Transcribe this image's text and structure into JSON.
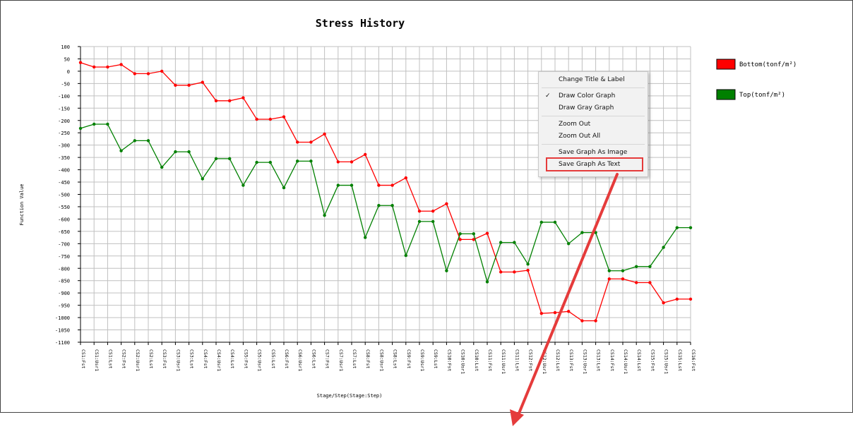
{
  "chart_data": {
    "type": "line",
    "title": "Stress History",
    "xlabel": "Stage/Step(Stage:Step)",
    "ylabel": "Function Value",
    "ylim": [
      -1100,
      100
    ],
    "ytick_step": 50,
    "grid": true,
    "legend_placement": "right",
    "categories": [
      "CS1:Fst",
      "CS1:Usr1",
      "CS1:Lst",
      "CS2:Fst",
      "CS2:Usr1",
      "CS2:Lst",
      "CS3:Fst",
      "CS3:Usr1",
      "CS3:Lst",
      "CS4:Fst",
      "CS4:Usr1",
      "CS4:Lst",
      "CS5:Fst",
      "CS5:Usr1",
      "CS5:Lst",
      "CS6:Fst",
      "CS6:Usr1",
      "CS6:Lst",
      "CS7:Fst",
      "CS7:Usr1",
      "CS7:Lst",
      "CS8:Fst",
      "CS8:Usr1",
      "CS8:Lst",
      "CS9:Fst",
      "CS9:Usr1",
      "CS9:Lst",
      "CS10:Fst",
      "CS10:Usr1",
      "CS10:Lst",
      "CS11:Fst",
      "CS11:Usr1",
      "CS11:Lst",
      "CS12:Fst",
      "CS12:Usr1",
      "CS12:Lst",
      "CS13:Fst",
      "CS13:Usr1",
      "CS13:Lst",
      "CS14:Fst",
      "CS14:Usr1",
      "CS14:Lst",
      "CS15:Fst",
      "CS15:Usr1",
      "CS15:Lst",
      "CS16:Fst"
    ],
    "series": [
      {
        "name": "Bottom(tonf/m²)",
        "color": "#ff0000",
        "values": [
          35,
          17,
          17,
          27,
          -10,
          -10,
          0,
          -57,
          -57,
          -45,
          -120,
          -120,
          -108,
          -195,
          -195,
          -185,
          -288,
          -288,
          -255,
          -368,
          -368,
          -338,
          -463,
          -463,
          -433,
          -568,
          -568,
          -538,
          -683,
          -683,
          -658,
          -815,
          -815,
          -808,
          -983,
          -980,
          -975,
          -1013,
          -1013,
          -843,
          -843,
          -858,
          -858,
          -940,
          -925,
          -925
        ]
      },
      {
        "name": "Top(tonf/m²)",
        "color": "#008000",
        "values": [
          -232,
          -215,
          -215,
          -323,
          -282,
          -282,
          -390,
          -327,
          -327,
          -437,
          -355,
          -355,
          -463,
          -370,
          -370,
          -473,
          -365,
          -365,
          -585,
          -463,
          -463,
          -675,
          -545,
          -545,
          -748,
          -610,
          -610,
          -810,
          -660,
          -660,
          -855,
          -695,
          -695,
          -783,
          -613,
          -613,
          -700,
          -655,
          -655,
          -810,
          -810,
          -793,
          -793,
          -715,
          -635,
          -635
        ]
      }
    ]
  },
  "yticks": [
    "100",
    "50",
    "0",
    "-50",
    "-100",
    "-150",
    "-200",
    "-250",
    "-300",
    "-350",
    "-400",
    "-450",
    "-500",
    "-550",
    "-600",
    "-650",
    "-700",
    "-750",
    "-800",
    "-850",
    "-900",
    "-950",
    "-1000",
    "-1050",
    "-1100"
  ],
  "context_menu": {
    "items": [
      {
        "label": "Change Title & Label",
        "checked": false
      },
      {
        "label": "Draw Color Graph",
        "checked": true
      },
      {
        "label": "Draw Gray Graph",
        "checked": false
      },
      {
        "label": "Zoom Out",
        "checked": false
      },
      {
        "label": "Zoom Out All",
        "checked": false
      },
      {
        "label": "Save Graph As Image",
        "checked": false
      },
      {
        "label": "Save Graph As Text",
        "checked": false,
        "highlighted": true
      }
    ],
    "check_mark": "✓"
  },
  "colors": {
    "grid": "#c0c0c0",
    "axis": "#000000",
    "annotation": "#e53b3b",
    "tick_label": "#000000"
  }
}
